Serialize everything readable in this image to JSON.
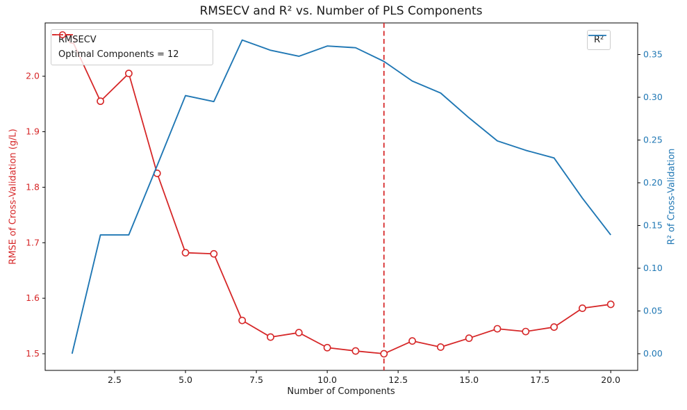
{
  "title": "RMSECV and R² vs. Number of PLS Components",
  "colors": {
    "rmsecv": "#d62728",
    "r2": "#1f77b4",
    "optimal_line": "#d62728",
    "axes": "#000000",
    "tick_label": "#1a1a1a",
    "legend_border": "#cccccc"
  },
  "legend_left": {
    "items": [
      {
        "label": "RMSECV",
        "icon": "red-line-open-circle"
      },
      {
        "label": "Optimal Components = 12",
        "icon": "red-dashed-line"
      }
    ]
  },
  "legend_right": {
    "items": [
      {
        "label": "R²",
        "icon": "blue-line"
      }
    ]
  },
  "chart_data": {
    "type": "line",
    "title": "RMSECV and R² vs. Number of PLS Components",
    "xlabel": "Number of Components",
    "ylabel_left": "RMSE of Cross-Validation (g/L)",
    "ylabel_right": "R² of Cross-Validation",
    "x": [
      1,
      2,
      3,
      4,
      5,
      6,
      7,
      8,
      9,
      10,
      11,
      12,
      13,
      14,
      15,
      16,
      17,
      18,
      19,
      20
    ],
    "series": [
      {
        "name": "RMSECV",
        "axis": "left",
        "color": "#d62728",
        "marker": "open-circle",
        "values": [
          2.065,
          1.955,
          2.005,
          1.825,
          1.682,
          1.68,
          1.56,
          1.53,
          1.538,
          1.511,
          1.505,
          1.5,
          1.523,
          1.512,
          1.528,
          1.545,
          1.54,
          1.548,
          1.582,
          1.589
        ]
      },
      {
        "name": "R²",
        "axis": "right",
        "color": "#1f77b4",
        "marker": "none",
        "values": [
          0.0,
          0.139,
          0.139,
          0.22,
          0.302,
          0.295,
          0.367,
          0.355,
          0.348,
          0.36,
          0.358,
          0.342,
          0.319,
          0.305,
          0.276,
          0.249,
          0.238,
          0.229,
          0.182,
          0.139
        ]
      }
    ],
    "vline": {
      "x": 12,
      "style": "dashed",
      "color": "#d62728",
      "label": "Optimal Components = 12"
    },
    "optimal_components": 12,
    "xlim": [
      0.05,
      20.95
    ],
    "ylim_left": [
      1.47,
      2.096
    ],
    "ylim_right": [
      -0.0195,
      0.387
    ],
    "xticks": {
      "values": [
        2.5,
        5.0,
        7.5,
        10.0,
        12.5,
        15.0,
        17.5,
        20.0
      ],
      "labels": [
        "2.5",
        "5.0",
        "7.5",
        "10.0",
        "12.5",
        "15.0",
        "17.5",
        "20.0"
      ]
    },
    "yticks_left": {
      "values": [
        1.5,
        1.6,
        1.7,
        1.8,
        1.9,
        2.0
      ],
      "labels": [
        "1.5",
        "1.6",
        "1.7",
        "1.8",
        "1.9",
        "2.0"
      ]
    },
    "yticks_right": {
      "values": [
        0.0,
        0.05,
        0.1,
        0.15,
        0.2,
        0.25,
        0.3,
        0.35
      ],
      "labels": [
        "0.00",
        "0.05",
        "0.10",
        "0.15",
        "0.20",
        "0.25",
        "0.30",
        "0.35"
      ]
    },
    "grid": false,
    "legend_positions": {
      "rmsecv_and_vline": "upper left",
      "r2": "upper right"
    }
  }
}
